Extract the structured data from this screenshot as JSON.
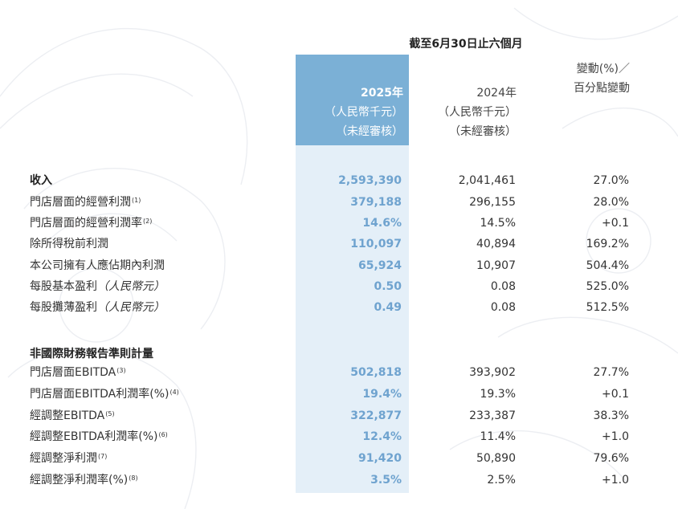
{
  "header": {
    "period": "截至6月30日止六個月",
    "col_2025": {
      "year": "2025年",
      "unit": "（人民幣千元）",
      "note": "（未經審核）"
    },
    "col_2024": {
      "year": "2024年",
      "unit": "（人民幣千元）",
      "note": "（未經審核）"
    },
    "col_change": {
      "line1": "變動(%)／",
      "line2": "百分點變動"
    }
  },
  "rows": [
    {
      "label": "收入",
      "sup": "",
      "suffix": "",
      "v2025": "2,593,390",
      "v2024": "2,041,461",
      "change": "27.0%"
    },
    {
      "label": "門店層面的經營利潤",
      "sup": "(1)",
      "suffix": "",
      "v2025": "379,188",
      "v2024": "296,155",
      "change": "28.0%"
    },
    {
      "label": "門店層面的經營利潤率",
      "sup": "(2)",
      "suffix": "",
      "v2025": "14.6%",
      "v2024": "14.5%",
      "change": "+0.1"
    },
    {
      "label": "除所得稅前利潤",
      "sup": "",
      "suffix": "",
      "v2025": "110,097",
      "v2024": "40,894",
      "change": "169.2%"
    },
    {
      "label": "本公司擁有人應佔期內利潤",
      "sup": "",
      "suffix": "",
      "v2025": "65,924",
      "v2024": "10,907",
      "change": "504.4%"
    },
    {
      "label": "每股基本盈利",
      "sup": "",
      "suffix": "（人民幣元）",
      "v2025": "0.50",
      "v2024": "0.08",
      "change": "525.0%"
    },
    {
      "label": "每股攤薄盈利",
      "sup": "",
      "suffix": "（人民幣元）",
      "v2025": "0.49",
      "v2024": "0.08",
      "change": "512.5%"
    }
  ],
  "section_title": "非國際財務報告準則計量",
  "rows2": [
    {
      "label": "門店層面EBITDA",
      "sup": "(3)",
      "suffix": "",
      "v2025": "502,818",
      "v2024": "393,902",
      "change": "27.7%"
    },
    {
      "label": "門店層面EBITDA利潤率(%)",
      "sup": "(4)",
      "suffix": "",
      "v2025": "19.4%",
      "v2024": "19.3%",
      "change": "+0.1"
    },
    {
      "label": "經調整EBITDA",
      "sup": "(5)",
      "suffix": "",
      "v2025": "322,877",
      "v2024": "233,387",
      "change": "38.3%"
    },
    {
      "label": "經調整EBITDA利潤率(%)",
      "sup": "(6)",
      "suffix": "",
      "v2025": "12.4%",
      "v2024": "11.4%",
      "change": "+1.0"
    },
    {
      "label": "經調整淨利潤",
      "sup": "(7)",
      "suffix": "",
      "v2025": "91,420",
      "v2024": "50,890",
      "change": "79.6%"
    },
    {
      "label": "經調整淨利潤率(%)",
      "sup": "(8)",
      "suffix": "",
      "v2025": "3.5%",
      "v2024": "2.5%",
      "change": "+1.0"
    }
  ],
  "colors": {
    "highlight_head": "#7bb0d6",
    "highlight_col": "#e4eff8",
    "value_2025": "#6fa3cf"
  }
}
